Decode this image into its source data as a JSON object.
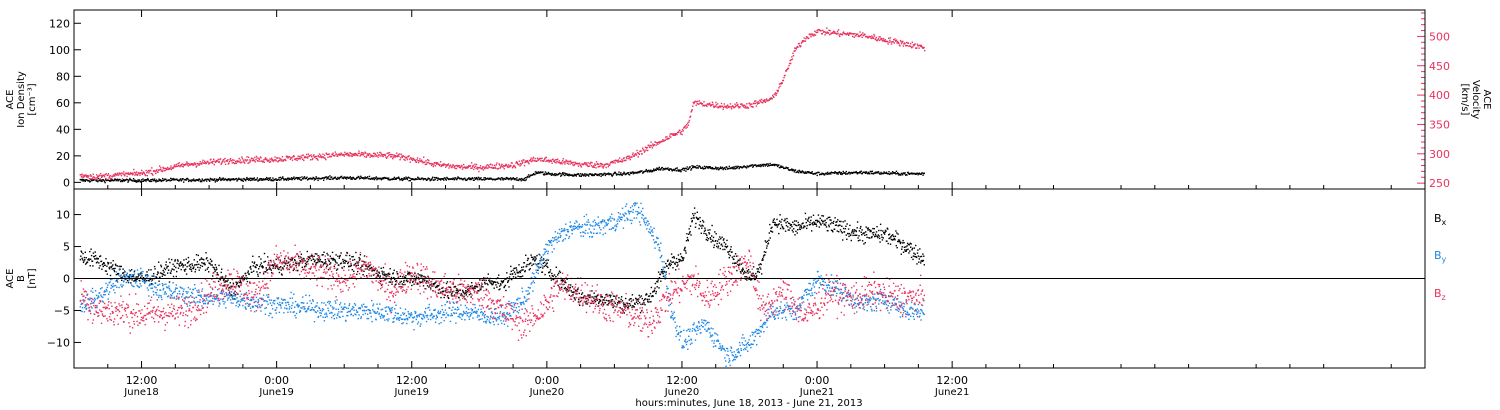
{
  "chart_data": [
    {
      "type": "scatter",
      "panel": "top",
      "xlabel": "hours:minutes, June 18, 2013 - June 21, 2013",
      "x_unit": "hours since 0:00 June 18, 2013",
      "xlim": [
        6,
        126
      ],
      "x_ticks": [
        {
          "t": 12,
          "time": "12:00",
          "date": "June18"
        },
        {
          "t": 24,
          "time": "0:00",
          "date": "June19"
        },
        {
          "t": 36,
          "time": "12:00",
          "date": "June19"
        },
        {
          "t": 48,
          "time": "0:00",
          "date": "June20"
        },
        {
          "t": 60,
          "time": "12:00",
          "date": "June20"
        },
        {
          "t": 72,
          "time": "0:00",
          "date": "June21"
        },
        {
          "t": 84,
          "time": "12:00",
          "date": "June21"
        }
      ],
      "y_left": {
        "label_lines": [
          "ACE",
          "Ion Density",
          "[cm⁻³]"
        ],
        "ylim": [
          -5,
          130
        ],
        "ticks": [
          0,
          20,
          40,
          60,
          80,
          100,
          120
        ],
        "color": "#000000"
      },
      "y_right": {
        "label_lines": [
          "ACE",
          "Velocity",
          "[km/s]"
        ],
        "ylim": [
          240,
          545
        ],
        "ticks": [
          250,
          300,
          350,
          400,
          450,
          500
        ],
        "color": "#e8325e"
      },
      "series": [
        {
          "name": "",
          "axis": "left",
          "color": "#000000",
          "knots": [
            [
              6.5,
              2
            ],
            [
              12,
              2
            ],
            [
              24,
              3
            ],
            [
              30,
              4
            ],
            [
              36,
              3
            ],
            [
              43,
              3
            ],
            [
              46,
              3
            ],
            [
              47,
              8
            ],
            [
              48,
              7
            ],
            [
              51,
              6
            ],
            [
              55,
              7
            ],
            [
              57,
              9
            ],
            [
              58,
              11
            ],
            [
              60,
              10
            ],
            [
              61,
              12
            ],
            [
              64,
              11
            ],
            [
              66,
              13
            ],
            [
              68,
              14
            ],
            [
              70,
              9
            ],
            [
              72,
              7
            ],
            [
              76,
              8
            ],
            [
              80,
              7
            ],
            [
              81.5,
              7
            ]
          ],
          "noise": 1.2
        },
        {
          "name": "",
          "axis": "right",
          "color": "#e8325e",
          "knots": [
            [
              6.5,
              265
            ],
            [
              8,
              262
            ],
            [
              12,
              268
            ],
            [
              16,
              283
            ],
            [
              20,
              290
            ],
            [
              24,
              292
            ],
            [
              30,
              300
            ],
            [
              34,
              298
            ],
            [
              36,
              293
            ],
            [
              38,
              283
            ],
            [
              40,
              279
            ],
            [
              42,
              278
            ],
            [
              45,
              282
            ],
            [
              47,
              292
            ],
            [
              49,
              288
            ],
            [
              51,
              283
            ],
            [
              53,
              282
            ],
            [
              55,
              292
            ],
            [
              57,
              312
            ],
            [
              59,
              332
            ],
            [
              60,
              340
            ],
            [
              60.5,
              352
            ],
            [
              61,
              388
            ],
            [
              62,
              386
            ],
            [
              64,
              382
            ],
            [
              66,
              384
            ],
            [
              68,
              395
            ],
            [
              69,
              430
            ],
            [
              70,
              478
            ],
            [
              71,
              500
            ],
            [
              72,
              510
            ],
            [
              74,
              506
            ],
            [
              76,
              503
            ],
            [
              78,
              495
            ],
            [
              80,
              488
            ],
            [
              81.5,
              482
            ]
          ],
          "noise": 5
        }
      ]
    },
    {
      "type": "scatter",
      "panel": "bottom",
      "xlim": [
        6,
        126
      ],
      "y_left": {
        "label_lines": [
          "ACE",
          "B",
          "[nT]"
        ],
        "ylim": [
          -14,
          14
        ],
        "ticks": [
          -10,
          -5,
          0,
          5,
          10
        ],
        "color": "#000000"
      },
      "zero_line": true,
      "series": [
        {
          "name": "B",
          "subscript": "x",
          "color": "#000000",
          "knots": [
            [
              6.5,
              3.5
            ],
            [
              8,
              3
            ],
            [
              10,
              1
            ],
            [
              12,
              0
            ],
            [
              15,
              2
            ],
            [
              18,
              2.5
            ],
            [
              20,
              -2
            ],
            [
              22,
              2
            ],
            [
              24,
              2
            ],
            [
              27,
              3
            ],
            [
              30,
              3
            ],
            [
              33,
              1
            ],
            [
              35,
              0
            ],
            [
              37,
              0
            ],
            [
              39,
              -2
            ],
            [
              41,
              -2
            ],
            [
              43,
              0
            ],
            [
              44,
              -1
            ],
            [
              45,
              1
            ],
            [
              47,
              3
            ],
            [
              49,
              0
            ],
            [
              51,
              -3
            ],
            [
              53,
              -3
            ],
            [
              55,
              -4
            ],
            [
              57,
              -3
            ],
            [
              59,
              3
            ],
            [
              60,
              3
            ],
            [
              61,
              10
            ],
            [
              62,
              8
            ],
            [
              63,
              6
            ],
            [
              64,
              5
            ],
            [
              66,
              0
            ],
            [
              67,
              2
            ],
            [
              68,
              9
            ],
            [
              70,
              8
            ],
            [
              72,
              9
            ],
            [
              74,
              8
            ],
            [
              76,
              7
            ],
            [
              78,
              7
            ],
            [
              80,
              5
            ],
            [
              81.5,
              3
            ]
          ],
          "noise": 1.3
        },
        {
          "name": "B",
          "subscript": "y",
          "color": "#1e88e5",
          "knots": [
            [
              6.5,
              -4
            ],
            [
              8,
              -3
            ],
            [
              10,
              0
            ],
            [
              12,
              0
            ],
            [
              14,
              -2
            ],
            [
              18,
              -3
            ],
            [
              20,
              -3
            ],
            [
              24,
              -4
            ],
            [
              30,
              -5
            ],
            [
              33,
              -5
            ],
            [
              36,
              -6
            ],
            [
              40,
              -5
            ],
            [
              44,
              -6
            ],
            [
              46,
              -3
            ],
            [
              48,
              5
            ],
            [
              50,
              8
            ],
            [
              52,
              8
            ],
            [
              54,
              9
            ],
            [
              56,
              11
            ],
            [
              58,
              5
            ],
            [
              59,
              -5
            ],
            [
              60,
              -10
            ],
            [
              62,
              -7
            ],
            [
              64,
              -12
            ],
            [
              66,
              -10
            ],
            [
              68,
              -5
            ],
            [
              70,
              -5
            ],
            [
              72,
              0
            ],
            [
              74,
              -2
            ],
            [
              76,
              -4
            ],
            [
              78,
              -3
            ],
            [
              80,
              -5
            ],
            [
              81.5,
              -5
            ]
          ],
          "noise": 1.5
        },
        {
          "name": "B",
          "subscript": "z",
          "color": "#e8325e",
          "knots": [
            [
              6.5,
              -2
            ],
            [
              8,
              -5
            ],
            [
              10,
              -5
            ],
            [
              12,
              -5.5
            ],
            [
              16,
              -5
            ],
            [
              18,
              -2
            ],
            [
              20,
              0
            ],
            [
              22,
              -3
            ],
            [
              24,
              3
            ],
            [
              26,
              2
            ],
            [
              28,
              1
            ],
            [
              30,
              0
            ],
            [
              32,
              2
            ],
            [
              34,
              -2
            ],
            [
              36,
              1
            ],
            [
              38,
              -1
            ],
            [
              40,
              -2
            ],
            [
              42,
              -2
            ],
            [
              44,
              -5
            ],
            [
              46,
              -7
            ],
            [
              48,
              -4
            ],
            [
              49,
              -1
            ],
            [
              51,
              -2
            ],
            [
              53,
              -4
            ],
            [
              55,
              -5
            ],
            [
              57,
              -7
            ],
            [
              59,
              -2
            ],
            [
              60,
              -1
            ],
            [
              61,
              0
            ],
            [
              62,
              -3
            ],
            [
              64,
              0
            ],
            [
              66,
              3
            ],
            [
              67,
              -5
            ],
            [
              69,
              -2
            ],
            [
              71,
              -6
            ],
            [
              73,
              -2
            ],
            [
              75,
              -3
            ],
            [
              77,
              -2
            ],
            [
              79,
              -3
            ],
            [
              81.5,
              -3
            ]
          ],
          "noise": 2.4
        }
      ]
    }
  ]
}
